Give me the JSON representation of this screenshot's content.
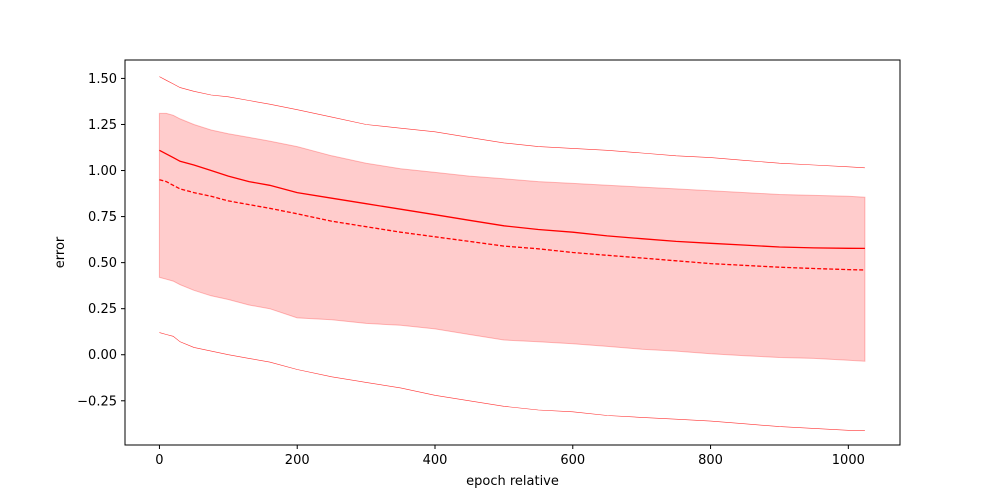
{
  "chart_data": {
    "type": "line",
    "title": "",
    "xlabel": "epoch relative",
    "ylabel": "error",
    "xlim": [
      -50,
      1075
    ],
    "ylim": [
      -0.49,
      1.6
    ],
    "x_ticks": [
      0,
      200,
      400,
      600,
      800,
      1000
    ],
    "y_ticks": [
      -0.25,
      0.0,
      0.25,
      0.5,
      0.75,
      1.0,
      1.25,
      1.5
    ],
    "y_tick_labels": [
      "−0.25",
      "0.00",
      "0.25",
      "0.50",
      "0.75",
      "1.00",
      "1.25",
      "1.50"
    ],
    "grid": false,
    "color": "#ff0000",
    "x": [
      0,
      10,
      20,
      30,
      50,
      75,
      100,
      130,
      160,
      200,
      250,
      300,
      350,
      400,
      450,
      500,
      550,
      600,
      650,
      700,
      750,
      800,
      850,
      900,
      950,
      1000,
      1024
    ],
    "series": [
      {
        "style": "solid",
        "values": [
          1.11,
          1.09,
          1.07,
          1.05,
          1.03,
          1.0,
          0.97,
          0.94,
          0.92,
          0.88,
          0.85,
          0.82,
          0.79,
          0.76,
          0.73,
          0.7,
          0.68,
          0.665,
          0.645,
          0.63,
          0.615,
          0.605,
          0.595,
          0.585,
          0.58,
          0.578,
          0.577
        ]
      },
      {
        "style": "dashed",
        "values": [
          0.95,
          0.94,
          0.92,
          0.9,
          0.88,
          0.86,
          0.835,
          0.815,
          0.795,
          0.765,
          0.725,
          0.695,
          0.665,
          0.64,
          0.615,
          0.59,
          0.575,
          0.555,
          0.54,
          0.525,
          0.51,
          0.495,
          0.485,
          0.475,
          0.468,
          0.462,
          0.46
        ]
      }
    ],
    "band_inner": {
      "upper": [
        1.31,
        1.31,
        1.3,
        1.28,
        1.25,
        1.22,
        1.2,
        1.18,
        1.16,
        1.13,
        1.08,
        1.04,
        1.01,
        0.99,
        0.97,
        0.955,
        0.94,
        0.93,
        0.92,
        0.91,
        0.9,
        0.89,
        0.88,
        0.87,
        0.865,
        0.86,
        0.855
      ],
      "lower": [
        0.42,
        0.41,
        0.4,
        0.38,
        0.35,
        0.32,
        0.3,
        0.27,
        0.25,
        0.2,
        0.19,
        0.17,
        0.16,
        0.14,
        0.11,
        0.08,
        0.07,
        0.06,
        0.045,
        0.03,
        0.02,
        0.005,
        -0.005,
        -0.015,
        -0.02,
        -0.03,
        -0.035
      ]
    },
    "band_outer": {
      "upper": [
        1.51,
        1.49,
        1.47,
        1.45,
        1.43,
        1.41,
        1.4,
        1.38,
        1.36,
        1.33,
        1.29,
        1.25,
        1.23,
        1.21,
        1.18,
        1.15,
        1.13,
        1.12,
        1.11,
        1.095,
        1.08,
        1.07,
        1.055,
        1.04,
        1.03,
        1.02,
        1.015
      ],
      "lower": [
        0.12,
        0.11,
        0.1,
        0.07,
        0.04,
        0.02,
        0.0,
        -0.02,
        -0.04,
        -0.08,
        -0.12,
        -0.15,
        -0.18,
        -0.22,
        -0.25,
        -0.28,
        -0.3,
        -0.31,
        -0.33,
        -0.34,
        -0.35,
        -0.36,
        -0.375,
        -0.39,
        -0.4,
        -0.41,
        -0.41
      ]
    }
  }
}
